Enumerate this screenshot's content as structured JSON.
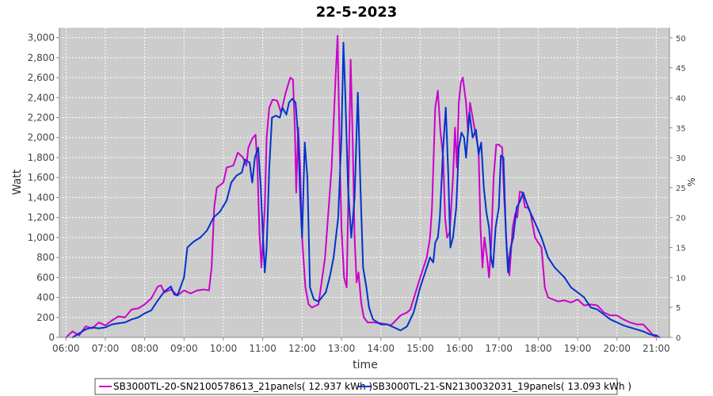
{
  "chart_data": {
    "type": "line",
    "title": "22-5-2023",
    "xlabel": "time",
    "ylabel": "Watt",
    "y2label": "%",
    "x_range": [
      "05:50",
      "21:20"
    ],
    "ylim": [
      0,
      3100
    ],
    "y2lim": [
      0,
      51.7
    ],
    "x_ticks": [
      "06:00",
      "07:00",
      "08:00",
      "09:00",
      "10:00",
      "11:00",
      "12:00",
      "13:00",
      "14:00",
      "15:00",
      "16:00",
      "17:00",
      "18:00",
      "19:00",
      "20:00",
      "21:00"
    ],
    "y_ticks": [
      "0",
      "200",
      "400",
      "600",
      "800",
      "1,000",
      "1,200",
      "1,400",
      "1,600",
      "1,800",
      "2,000",
      "2,200",
      "2,400",
      "2,600",
      "2,800",
      "3,000"
    ],
    "y2_ticks": [
      "0",
      "5",
      "10",
      "15",
      "20",
      "25",
      "30",
      "35",
      "40",
      "45",
      "50"
    ],
    "grid": true,
    "plot_background": "#cccccc",
    "legend_position": "bottom",
    "series": [
      {
        "name": "SB3000TL-20-SN2100578613_21panels( 12.937 kWh )",
        "color": "#cc00cc",
        "points": [
          [
            "06:00",
            0
          ],
          [
            "06:10",
            60
          ],
          [
            "06:20",
            20
          ],
          [
            "06:30",
            110
          ],
          [
            "06:40",
            90
          ],
          [
            "06:50",
            150
          ],
          [
            "07:00",
            120
          ],
          [
            "07:10",
            170
          ],
          [
            "07:20",
            210
          ],
          [
            "07:30",
            200
          ],
          [
            "07:40",
            280
          ],
          [
            "07:50",
            290
          ],
          [
            "08:00",
            330
          ],
          [
            "08:10",
            390
          ],
          [
            "08:20",
            510
          ],
          [
            "08:25",
            520
          ],
          [
            "08:30",
            450
          ],
          [
            "08:40",
            480
          ],
          [
            "08:50",
            420
          ],
          [
            "09:00",
            470
          ],
          [
            "09:10",
            440
          ],
          [
            "09:20",
            470
          ],
          [
            "09:30",
            480
          ],
          [
            "09:38",
            470
          ],
          [
            "09:42",
            700
          ],
          [
            "09:46",
            1300
          ],
          [
            "09:50",
            1500
          ],
          [
            "10:00",
            1550
          ],
          [
            "10:05",
            1700
          ],
          [
            "10:15",
            1720
          ],
          [
            "10:22",
            1850
          ],
          [
            "10:30",
            1800
          ],
          [
            "10:35",
            1720
          ],
          [
            "10:38",
            1900
          ],
          [
            "10:44",
            1990
          ],
          [
            "10:49",
            2030
          ],
          [
            "10:52",
            1700
          ],
          [
            "10:55",
            1050
          ],
          [
            "10:58",
            700
          ],
          [
            "11:03",
            1300
          ],
          [
            "11:06",
            2000
          ],
          [
            "11:10",
            2300
          ],
          [
            "11:15",
            2380
          ],
          [
            "11:22",
            2370
          ],
          [
            "11:28",
            2250
          ],
          [
            "11:35",
            2450
          ],
          [
            "11:42",
            2600
          ],
          [
            "11:46",
            2580
          ],
          [
            "11:49",
            2100
          ],
          [
            "11:51",
            1450
          ],
          [
            "11:54",
            2100
          ],
          [
            "11:57",
            1700
          ],
          [
            "12:00",
            1000
          ],
          [
            "12:05",
            500
          ],
          [
            "12:10",
            330
          ],
          [
            "12:15",
            300
          ],
          [
            "12:25",
            330
          ],
          [
            "12:35",
            800
          ],
          [
            "12:45",
            1700
          ],
          [
            "12:51",
            2600
          ],
          [
            "12:54",
            3020
          ],
          [
            "12:57",
            2000
          ],
          [
            "13:00",
            1100
          ],
          [
            "13:04",
            600
          ],
          [
            "13:08",
            500
          ],
          [
            "13:11",
            1600
          ],
          [
            "13:14",
            2780
          ],
          [
            "13:17",
            2000
          ],
          [
            "13:20",
            1000
          ],
          [
            "13:23",
            550
          ],
          [
            "13:26",
            650
          ],
          [
            "13:30",
            350
          ],
          [
            "13:34",
            200
          ],
          [
            "13:40",
            150
          ],
          [
            "13:50",
            150
          ],
          [
            "14:00",
            140
          ],
          [
            "14:10",
            130
          ],
          [
            "14:15",
            120
          ],
          [
            "14:20",
            150
          ],
          [
            "14:30",
            220
          ],
          [
            "14:40",
            250
          ],
          [
            "14:45",
            280
          ],
          [
            "15:00",
            600
          ],
          [
            "15:10",
            800
          ],
          [
            "15:15",
            1000
          ],
          [
            "15:18",
            1300
          ],
          [
            "15:23",
            2300
          ],
          [
            "15:27",
            2470
          ],
          [
            "15:31",
            2050
          ],
          [
            "15:35",
            1800
          ],
          [
            "15:38",
            1200
          ],
          [
            "15:41",
            1000
          ],
          [
            "15:45",
            1050
          ],
          [
            "15:50",
            1600
          ],
          [
            "15:53",
            2100
          ],
          [
            "15:56",
            1700
          ],
          [
            "15:59",
            2350
          ],
          [
            "16:02",
            2550
          ],
          [
            "16:05",
            2600
          ],
          [
            "16:10",
            2350
          ],
          [
            "16:13",
            2050
          ],
          [
            "16:16",
            2350
          ],
          [
            "16:20",
            2200
          ],
          [
            "16:24",
            2050
          ],
          [
            "16:29",
            1880
          ],
          [
            "16:32",
            1100
          ],
          [
            "16:35",
            700
          ],
          [
            "16:38",
            1000
          ],
          [
            "16:42",
            800
          ],
          [
            "16:45",
            600
          ],
          [
            "16:48",
            900
          ],
          [
            "16:52",
            1600
          ],
          [
            "16:56",
            1930
          ],
          [
            "17:00",
            1930
          ],
          [
            "17:05",
            1900
          ],
          [
            "17:08",
            1400
          ],
          [
            "17:12",
            900
          ],
          [
            "17:16",
            620
          ],
          [
            "17:21",
            1100
          ],
          [
            "17:25",
            1240
          ],
          [
            "17:28",
            1200
          ],
          [
            "17:32",
            1460
          ],
          [
            "17:36",
            1450
          ],
          [
            "17:40",
            1300
          ],
          [
            "17:44",
            1300
          ],
          [
            "17:48",
            1250
          ],
          [
            "17:55",
            1000
          ],
          [
            "18:05",
            900
          ],
          [
            "18:10",
            500
          ],
          [
            "18:15",
            400
          ],
          [
            "18:30",
            360
          ],
          [
            "18:40",
            370
          ],
          [
            "18:50",
            350
          ],
          [
            "19:00",
            380
          ],
          [
            "19:10",
            320
          ],
          [
            "19:20",
            330
          ],
          [
            "19:30",
            320
          ],
          [
            "19:40",
            250
          ],
          [
            "19:50",
            220
          ],
          [
            "20:00",
            220
          ],
          [
            "20:10",
            180
          ],
          [
            "20:20",
            150
          ],
          [
            "20:30",
            130
          ],
          [
            "20:40",
            130
          ],
          [
            "20:50",
            60
          ],
          [
            "20:55",
            20
          ],
          [
            "21:00",
            0
          ]
        ]
      },
      {
        "name": "SB3000TL-21-SN2130032031_19panels( 13.093 kWh )",
        "color": "#0033cc",
        "points": [
          [
            "06:10",
            0
          ],
          [
            "06:20",
            40
          ],
          [
            "06:30",
            80
          ],
          [
            "06:40",
            100
          ],
          [
            "06:50",
            90
          ],
          [
            "07:00",
            100
          ],
          [
            "07:10",
            130
          ],
          [
            "07:20",
            140
          ],
          [
            "07:30",
            150
          ],
          [
            "07:40",
            180
          ],
          [
            "07:50",
            200
          ],
          [
            "08:00",
            240
          ],
          [
            "08:10",
            270
          ],
          [
            "08:20",
            370
          ],
          [
            "08:30",
            460
          ],
          [
            "08:40",
            510
          ],
          [
            "08:45",
            430
          ],
          [
            "08:50",
            420
          ],
          [
            "09:00",
            600
          ],
          [
            "09:05",
            900
          ],
          [
            "09:15",
            960
          ],
          [
            "09:25",
            1000
          ],
          [
            "09:35",
            1070
          ],
          [
            "09:45",
            1200
          ],
          [
            "09:55",
            1260
          ],
          [
            "10:05",
            1370
          ],
          [
            "10:12",
            1550
          ],
          [
            "10:20",
            1620
          ],
          [
            "10:28",
            1650
          ],
          [
            "10:33",
            1780
          ],
          [
            "10:40",
            1750
          ],
          [
            "10:44",
            1550
          ],
          [
            "10:48",
            1800
          ],
          [
            "10:53",
            1900
          ],
          [
            "10:57",
            1500
          ],
          [
            "11:00",
            1050
          ],
          [
            "11:03",
            650
          ],
          [
            "11:06",
            900
          ],
          [
            "11:10",
            1700
          ],
          [
            "11:14",
            2200
          ],
          [
            "11:20",
            2220
          ],
          [
            "11:26",
            2200
          ],
          [
            "11:30",
            2300
          ],
          [
            "11:36",
            2230
          ],
          [
            "11:40",
            2350
          ],
          [
            "11:45",
            2390
          ],
          [
            "11:50",
            2350
          ],
          [
            "11:54",
            2000
          ],
          [
            "11:57",
            1400
          ],
          [
            "12:00",
            1000
          ],
          [
            "12:04",
            1950
          ],
          [
            "12:08",
            1600
          ],
          [
            "12:12",
            500
          ],
          [
            "12:18",
            380
          ],
          [
            "12:25",
            360
          ],
          [
            "12:30",
            400
          ],
          [
            "12:36",
            450
          ],
          [
            "12:42",
            600
          ],
          [
            "12:48",
            800
          ],
          [
            "12:55",
            1200
          ],
          [
            "13:00",
            2000
          ],
          [
            "13:03",
            2950
          ],
          [
            "13:06",
            2400
          ],
          [
            "13:10",
            1500
          ],
          [
            "13:15",
            1000
          ],
          [
            "13:20",
            1400
          ],
          [
            "13:25",
            2450
          ],
          [
            "13:29",
            1500
          ],
          [
            "13:33",
            700
          ],
          [
            "13:38",
            500
          ],
          [
            "13:42",
            300
          ],
          [
            "13:48",
            180
          ],
          [
            "13:55",
            150
          ],
          [
            "14:00",
            130
          ],
          [
            "14:10",
            130
          ],
          [
            "14:20",
            100
          ],
          [
            "14:30",
            70
          ],
          [
            "14:40",
            110
          ],
          [
            "14:50",
            250
          ],
          [
            "15:00",
            500
          ],
          [
            "15:10",
            700
          ],
          [
            "15:15",
            800
          ],
          [
            "15:20",
            750
          ],
          [
            "15:23",
            950
          ],
          [
            "15:27",
            1000
          ],
          [
            "15:30",
            1200
          ],
          [
            "15:35",
            1900
          ],
          [
            "15:39",
            2300
          ],
          [
            "15:43",
            1600
          ],
          [
            "15:46",
            900
          ],
          [
            "15:50",
            1000
          ],
          [
            "15:55",
            1300
          ],
          [
            "15:59",
            1900
          ],
          [
            "16:03",
            2050
          ],
          [
            "16:07",
            2000
          ],
          [
            "16:10",
            1800
          ],
          [
            "16:15",
            2250
          ],
          [
            "16:20",
            2000
          ],
          [
            "16:25",
            2080
          ],
          [
            "16:29",
            1830
          ],
          [
            "16:33",
            1950
          ],
          [
            "16:37",
            1500
          ],
          [
            "16:41",
            1250
          ],
          [
            "16:45",
            1100
          ],
          [
            "16:48",
            800
          ],
          [
            "16:51",
            700
          ],
          [
            "16:55",
            1100
          ],
          [
            "17:00",
            1300
          ],
          [
            "17:03",
            1820
          ],
          [
            "17:07",
            1800
          ],
          [
            "17:11",
            1000
          ],
          [
            "17:14",
            650
          ],
          [
            "17:18",
            900
          ],
          [
            "17:22",
            1000
          ],
          [
            "17:27",
            1300
          ],
          [
            "17:32",
            1360
          ],
          [
            "17:37",
            1450
          ],
          [
            "17:42",
            1350
          ],
          [
            "17:48",
            1250
          ],
          [
            "17:55",
            1150
          ],
          [
            "18:05",
            1000
          ],
          [
            "18:15",
            800
          ],
          [
            "18:25",
            700
          ],
          [
            "18:40",
            600
          ],
          [
            "18:50",
            500
          ],
          [
            "19:00",
            450
          ],
          [
            "19:10",
            400
          ],
          [
            "19:20",
            300
          ],
          [
            "19:30",
            280
          ],
          [
            "19:40",
            230
          ],
          [
            "19:50",
            180
          ],
          [
            "20:00",
            150
          ],
          [
            "20:10",
            120
          ],
          [
            "20:20",
            100
          ],
          [
            "20:30",
            80
          ],
          [
            "20:40",
            60
          ],
          [
            "20:50",
            30
          ],
          [
            "21:00",
            20
          ],
          [
            "21:05",
            0
          ]
        ]
      }
    ]
  }
}
